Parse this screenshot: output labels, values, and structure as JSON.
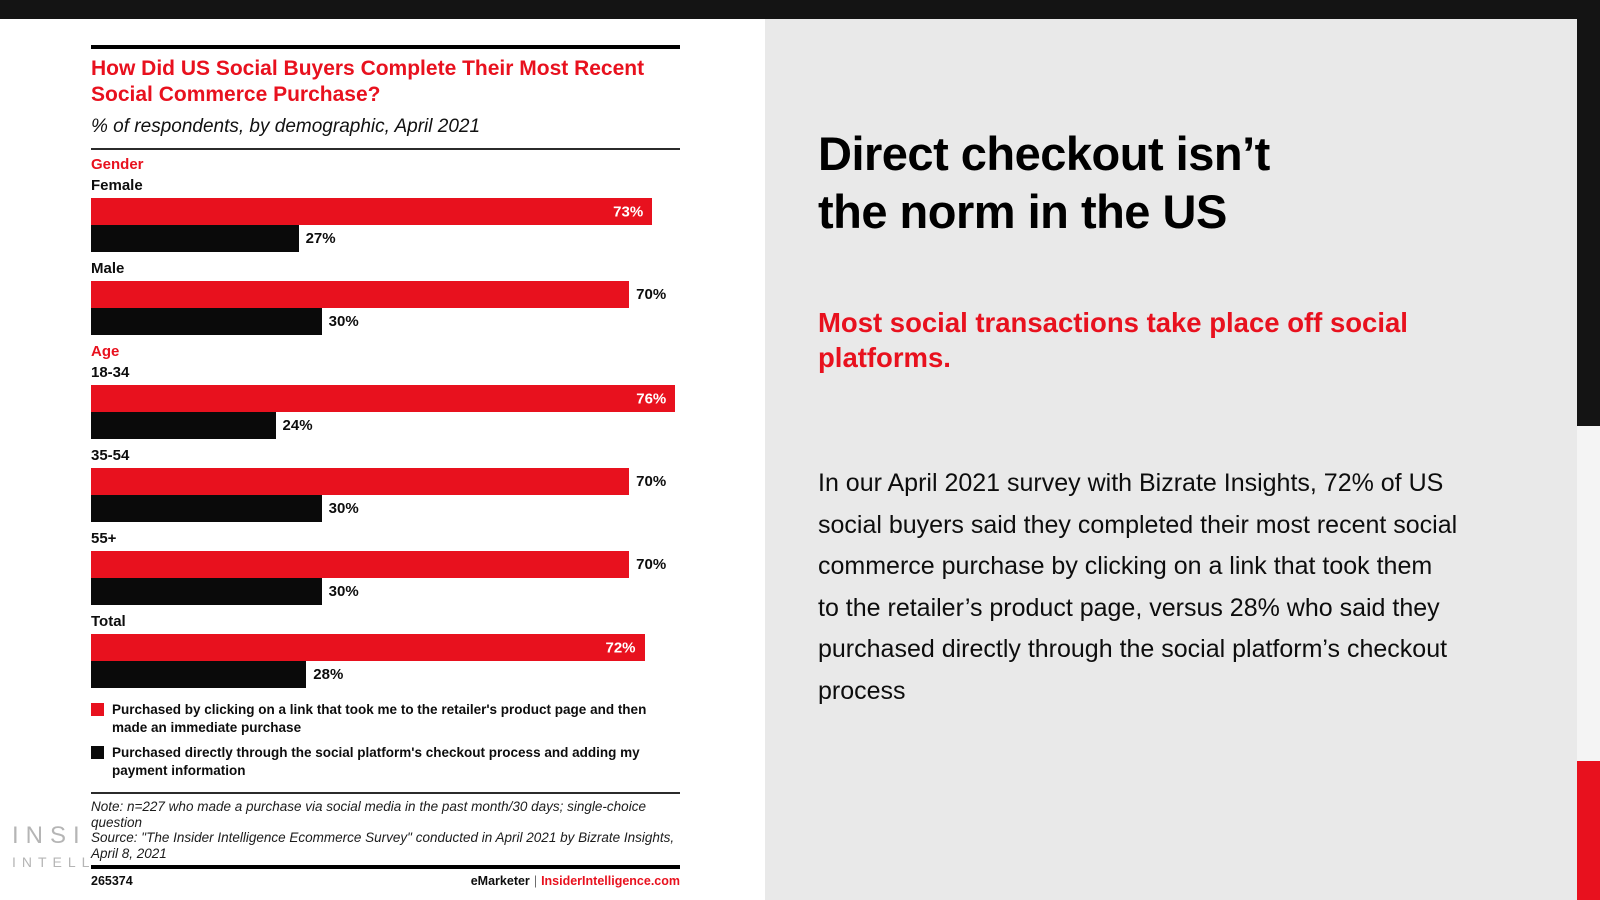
{
  "chart_data": {
    "type": "bar",
    "orientation": "horizontal",
    "unit": "%",
    "title": "How Did US Social Buyers Complete Their Most Recent Social Commerce Purchase?",
    "subtitle": "% of respondents, by demographic, April 2021",
    "xlim": [
      0,
      76
    ],
    "grid": false,
    "legend_position": "bottom",
    "series_names": [
      "Purchased by clicking on a link that took me to the retailer's product page and then made an immediate purchase",
      "Purchased directly through the social platform's checkout process and adding my payment information"
    ],
    "colors": {
      "link_click": "#e8111e",
      "direct_checkout": "#0a0a0a"
    },
    "sections": [
      {
        "header": "Gender",
        "rows": [
          {
            "label": "Female",
            "link_click": 73,
            "direct_checkout": 27,
            "red_label_inside": true
          },
          {
            "label": "Male",
            "link_click": 70,
            "direct_checkout": 30,
            "red_label_inside": false
          }
        ]
      },
      {
        "header": "Age",
        "rows": [
          {
            "label": "18-34",
            "link_click": 76,
            "direct_checkout": 24,
            "red_label_inside": true
          },
          {
            "label": "35-54",
            "link_click": 70,
            "direct_checkout": 30,
            "red_label_inside": false
          },
          {
            "label": "55+",
            "link_click": 70,
            "direct_checkout": 30,
            "red_label_inside": false
          }
        ]
      },
      {
        "header": null,
        "rows": [
          {
            "label": "Total",
            "link_click": 72,
            "direct_checkout": 28,
            "red_label_inside": true
          }
        ]
      }
    ],
    "note": "Note: n=227 who made a purchase via social media in the past month/30 days; single-choice question",
    "source": "Source: \"The Insider Intelligence Ecommerce Survey\" conducted in April 2021 by Bizrate Insights, April 8, 2021"
  },
  "legend": [
    {
      "color": "#e8111e",
      "label": "Purchased by clicking on a link that took me to the retailer's product page and then made an immediate purchase"
    },
    {
      "color": "#0a0a0a",
      "label": "Purchased directly through the social platform's checkout process and adding my payment information"
    }
  ],
  "chart_footer": {
    "id": "265374",
    "brand_left": "eMarketer",
    "divider": "|",
    "brand_right": "InsiderIntelligence.com"
  },
  "watermark": {
    "line1": "INSI",
    "line2": "INTELL"
  },
  "panel": {
    "heading_lines": [
      "Direct checkout isn’t",
      "the norm in the US"
    ],
    "subhead": "Most social transactions take place off social platforms.",
    "body": "In our April 2021 survey with Bizrate Insights, 72% of US social buyers said they completed their most recent social commerce purchase by clicking on a link that took them to the retailer’s product page, versus 28% who said they purchased directly through the social platform’s checkout process"
  }
}
